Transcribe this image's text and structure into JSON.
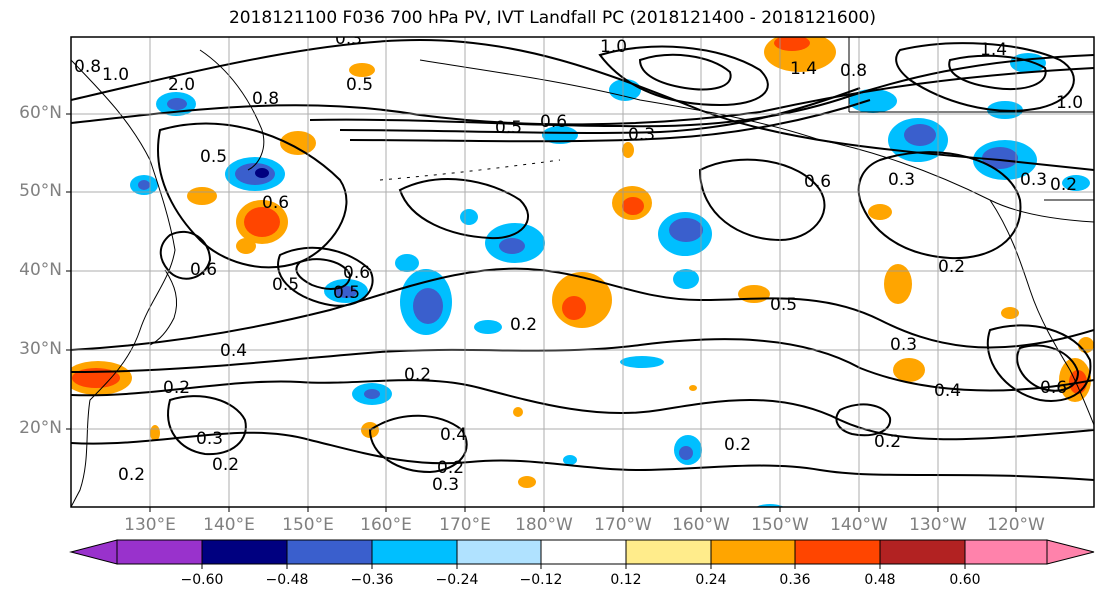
{
  "title": "2018121100 F036 700 hPa PV, IVT Landfall PC (2018121400 - 2018121600)",
  "lat_labels": [
    "60°N",
    "50°N",
    "40°N",
    "30°N",
    "20°N"
  ],
  "lon_labels": [
    "130°E",
    "140°E",
    "150°E",
    "160°E",
    "170°E",
    "180°W",
    "170°W",
    "160°W",
    "150°W",
    "140°W",
    "130°W",
    "120°W"
  ],
  "colorbar": {
    "ticks": [
      "−0.60",
      "−0.48",
      "−0.36",
      "−0.24",
      "−0.12",
      "0.12",
      "0.24",
      "0.36",
      "0.48",
      "0.60"
    ],
    "colors": [
      "#9932cc",
      "#000080",
      "#3a5fcd",
      "#00bfff",
      "#b0e2ff",
      "#ffffff",
      "#ffec8b",
      "#ffa500",
      "#ff4500",
      "#b22222",
      "#ff82ab"
    ]
  },
  "contour_labels": [
    "0.8",
    "1.0",
    "2.0",
    "0.8",
    "0.5",
    "0.5",
    "0.6",
    "0.3",
    "1.0",
    "1.4",
    "0.8",
    "1.4",
    "1.0",
    "0.3",
    "0.6",
    "0.3",
    "0.2",
    "0.5",
    "0.6",
    "0.5",
    "0.6",
    "0.5",
    "0.6",
    "0.4",
    "0.2",
    "0.2",
    "0.2",
    "0.4",
    "0.2",
    "0.3",
    "0.2",
    "0.3",
    "0.2",
    "0.5",
    "0.3",
    "0.4",
    "0.2",
    "0.2",
    "0.6",
    "0.3",
    "0.2"
  ],
  "colors": {
    "contour": "#000000",
    "grid": "#9a9a9a",
    "tick_text": "#808080"
  }
}
